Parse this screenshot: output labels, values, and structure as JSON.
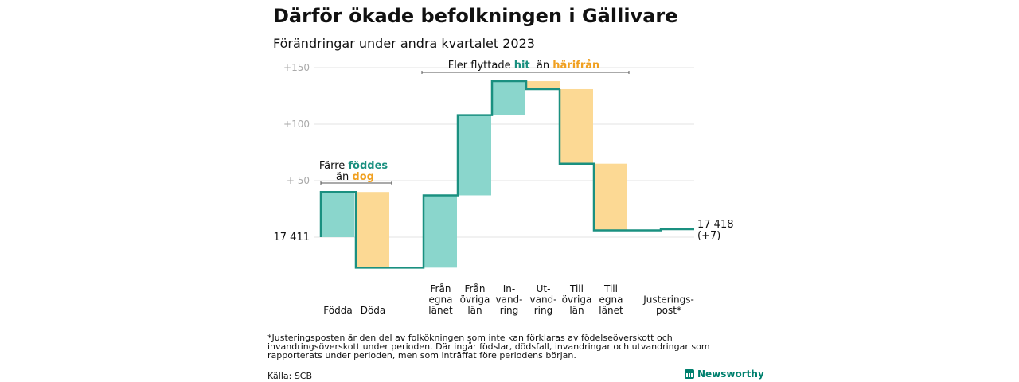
{
  "title": "Därför ökade befolkningen i Gällivare",
  "subtitle": "Förändringar under andra kvartalet 2023",
  "footnote": "*Justeringsposten är den del av folkökningen som inte kan förklaras av födelseöverskott och invandringsöverskott under perioden. Där ingår födslar, dödsfall, invandringar och utvandringar som rapporterats under perioden, men som inträffat före periodens början.",
  "source": "Källa: SCB",
  "brand": "Newsworthy",
  "colors": {
    "increase": "#8ad6cc",
    "decrease": "#fcd994",
    "step_line": "#1a9080",
    "teal_text": "#1a9080",
    "orange_text": "#f0a020",
    "grid": "#e3e3e3"
  },
  "chart_data": {
    "type": "waterfall",
    "start_label": "17  411",
    "end_label": "17 418",
    "end_change": "(+7)",
    "y_ticks": [
      "+150",
      "+100",
      "+  50"
    ],
    "y_tick_values": [
      150,
      100,
      50
    ],
    "ylim": [
      -30,
      160
    ],
    "steps": [
      {
        "label": [
          "Födda"
        ],
        "start": 0,
        "end": 40
      },
      {
        "label": [
          "Döda"
        ],
        "start": 40,
        "end": -27
      },
      {
        "label": [
          "Från",
          "egna",
          "länet"
        ],
        "start": -27,
        "end": 37
      },
      {
        "label": [
          "Från",
          "övriga",
          "län"
        ],
        "start": 37,
        "end": 108
      },
      {
        "label": [
          "In-",
          "vand-",
          "ring"
        ],
        "start": 108,
        "end": 138
      },
      {
        "label": [
          "Ut-",
          "vand-",
          "ring"
        ],
        "start": 138,
        "end": 131
      },
      {
        "label": [
          "Till",
          "övriga",
          "län"
        ],
        "start": 131,
        "end": 65
      },
      {
        "label": [
          "Till",
          "egna",
          "länet"
        ],
        "start": 65,
        "end": 6
      },
      {
        "label": [
          "Justerings-",
          "post*"
        ],
        "start": 6,
        "end": 7
      }
    ],
    "annotations": [
      {
        "plain1": "Färre ",
        "hl1": "föddes",
        "line2_plain": "än ",
        "hl2": "dog"
      },
      {
        "plain1": "Fler flyttade ",
        "hl1": "hit",
        "mid": "  än ",
        "hl2": "härifrån"
      }
    ]
  }
}
